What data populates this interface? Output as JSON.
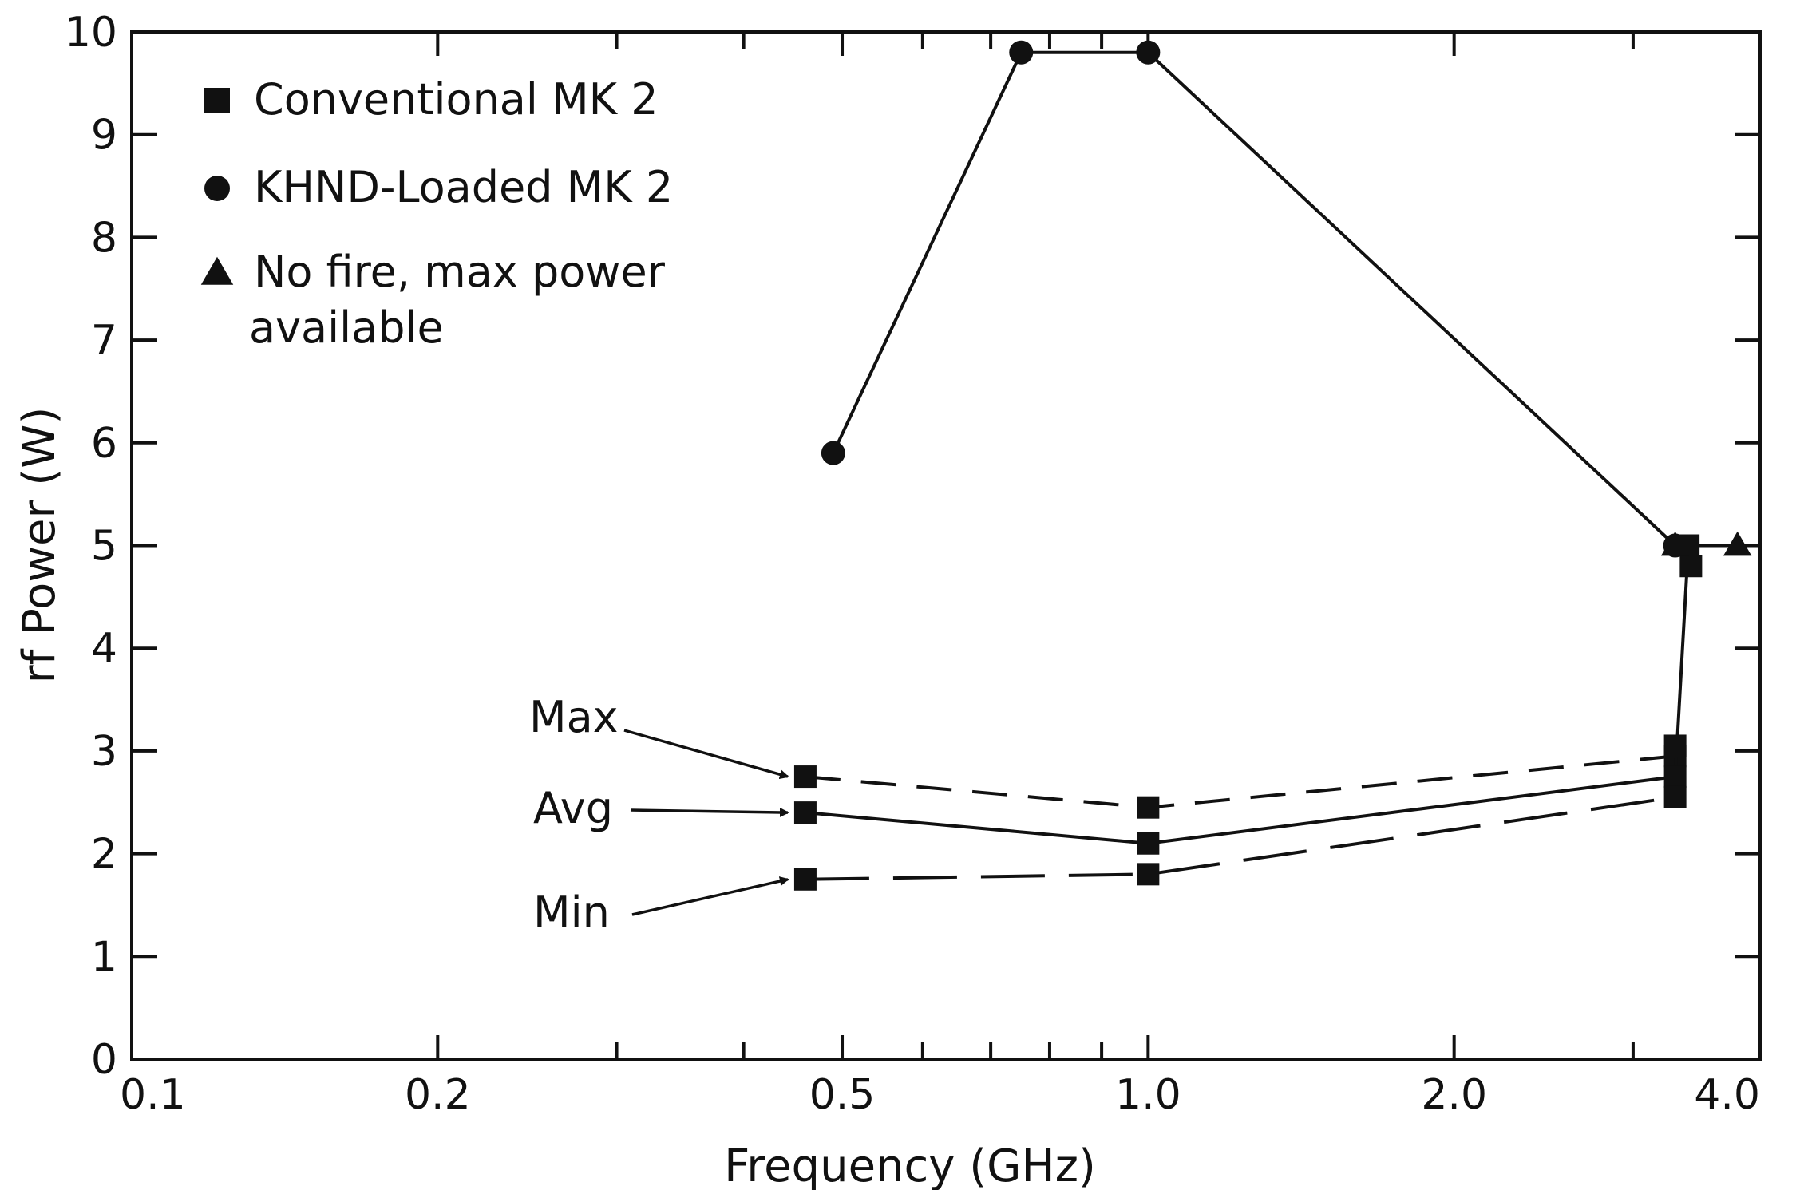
{
  "chart_data": {
    "type": "line",
    "xlabel": "Frequency (GHz)",
    "ylabel": "rf Power (W)",
    "xscale": "log",
    "xlim": [
      0.1,
      4.0
    ],
    "ylim": [
      0,
      10
    ],
    "grid": false,
    "legend_position": "top-left",
    "x_tick_labels": [
      {
        "value": 0.1,
        "label": "0.1"
      },
      {
        "value": 0.2,
        "label": "0.2"
      },
      {
        "value": 0.5,
        "label": "0.5"
      },
      {
        "value": 1.0,
        "label": "1.0"
      },
      {
        "value": 2.0,
        "label": "2.0"
      },
      {
        "value": 4.0,
        "label": "4.0"
      }
    ],
    "y_tick_labels": [
      {
        "value": 0,
        "label": "0"
      },
      {
        "value": 1,
        "label": "1"
      },
      {
        "value": 2,
        "label": "2"
      },
      {
        "value": 3,
        "label": "3"
      },
      {
        "value": 4,
        "label": "4"
      },
      {
        "value": 5,
        "label": "5"
      },
      {
        "value": 6,
        "label": "6"
      },
      {
        "value": 7,
        "label": "7"
      },
      {
        "value": 8,
        "label": "8"
      },
      {
        "value": 9,
        "label": "9"
      },
      {
        "value": 10,
        "label": "10"
      }
    ],
    "legend": [
      {
        "marker": "square",
        "label": "Conventional MK 2"
      },
      {
        "marker": "circle",
        "label": "KHND-Loaded MK 2"
      },
      {
        "marker": "triangle",
        "label": "No fire, max power",
        "label2": "available"
      }
    ],
    "series": [
      {
        "id": "khnd",
        "marker": "circle",
        "line": "solid",
        "points": [
          {
            "x": 0.49,
            "y": 5.9
          },
          {
            "x": 0.75,
            "y": 9.8
          },
          {
            "x": 1.0,
            "y": 9.8
          },
          {
            "x": 3.3,
            "y": 5.0
          }
        ]
      },
      {
        "id": "conventional-max",
        "marker": "square",
        "line": "dashed",
        "points": [
          {
            "x": 0.46,
            "y": 2.75
          },
          {
            "x": 1.0,
            "y": 2.45
          },
          {
            "x": 3.3,
            "y": 2.95
          }
        ]
      },
      {
        "id": "conventional-avg",
        "marker": "square",
        "line": "solid",
        "points": [
          {
            "x": 0.46,
            "y": 2.4
          },
          {
            "x": 1.0,
            "y": 2.1
          },
          {
            "x": 3.3,
            "y": 2.75
          },
          {
            "x": 3.4,
            "y": 5.0
          }
        ]
      },
      {
        "id": "conventional-min",
        "marker": "square",
        "line": "longdash",
        "points": [
          {
            "x": 0.46,
            "y": 1.75
          },
          {
            "x": 1.0,
            "y": 1.8
          },
          {
            "x": 3.3,
            "y": 2.55
          }
        ]
      },
      {
        "id": "extra-conventional",
        "marker": "square",
        "line": "none",
        "points": [
          {
            "x": 3.3,
            "y": 3.05
          },
          {
            "x": 3.42,
            "y": 4.8
          }
        ]
      },
      {
        "id": "no-fire",
        "marker": "triangle",
        "line": "solid",
        "points": [
          {
            "x": 3.3,
            "y": 5.0
          },
          {
            "x": 3.8,
            "y": 5.0
          }
        ]
      }
    ],
    "annotations": [
      {
        "text": "Max",
        "target": {
          "x": 0.46,
          "y": 2.75
        }
      },
      {
        "text": "Avg",
        "target": {
          "x": 0.46,
          "y": 2.4
        }
      },
      {
        "text": "Min",
        "target": {
          "x": 0.46,
          "y": 1.75
        }
      }
    ]
  }
}
